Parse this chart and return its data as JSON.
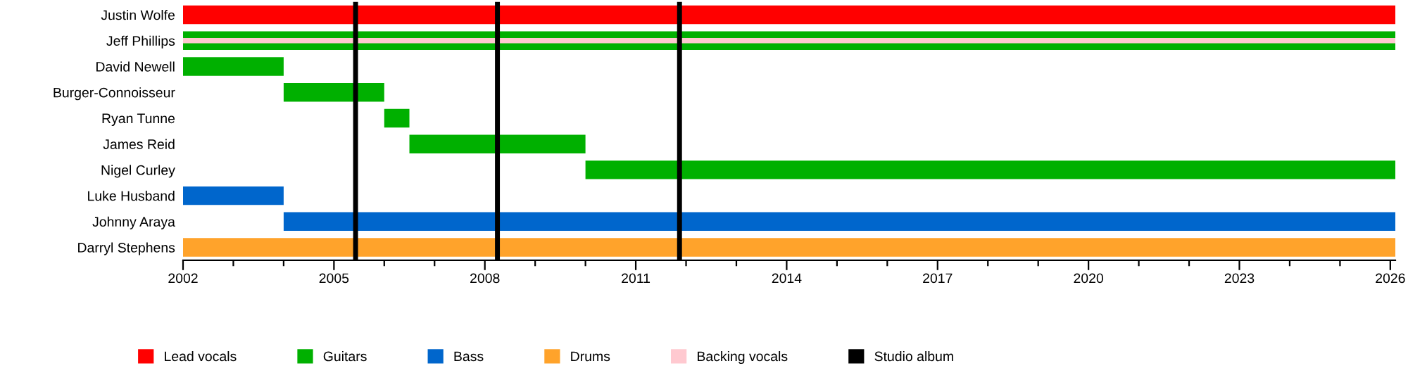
{
  "chart_data": {
    "type": "bar",
    "orientation": "horizontal",
    "categories": [
      "Justin Wolfe",
      "Jeff Phillips",
      "David Newell",
      "Burger-Connoisseur",
      "Ryan Tunne",
      "James Reid",
      "Nigel Curley",
      "Luke Husband",
      "Johnny Araya",
      "Darryl Stephens"
    ],
    "series": [
      {
        "name": "Lead vocals",
        "color": "#ff0000",
        "base": [
          2002,
          null,
          null,
          null,
          null,
          null,
          null,
          null,
          null,
          null
        ],
        "values": [
          24.1,
          null,
          null,
          null,
          null,
          null,
          null,
          null,
          null,
          null
        ]
      },
      {
        "name": "Guitars",
        "color": "#00b000",
        "base": [
          null,
          2002,
          2002,
          2004,
          2006,
          2006.5,
          2010,
          null,
          null,
          null
        ],
        "values": [
          null,
          24.1,
          2,
          2,
          0.5,
          3.5,
          16.1,
          null,
          null,
          null
        ]
      },
      {
        "name": "Bass",
        "color": "#0066cc",
        "base": [
          null,
          null,
          null,
          null,
          null,
          null,
          null,
          2002,
          2004,
          null
        ],
        "values": [
          null,
          null,
          null,
          null,
          null,
          null,
          null,
          2,
          22.1,
          null
        ]
      },
      {
        "name": "Drums",
        "color": "#ffa32b",
        "base": [
          null,
          null,
          null,
          null,
          null,
          null,
          null,
          null,
          null,
          2002
        ],
        "values": [
          null,
          null,
          null,
          null,
          null,
          null,
          null,
          null,
          null,
          24.1
        ]
      },
      {
        "name": "Backing vocals",
        "color": "#ffc9d0",
        "base": [
          null,
          2002,
          null,
          null,
          null,
          null,
          null,
          null,
          null,
          null
        ],
        "values": [
          null,
          24.1,
          null,
          null,
          null,
          null,
          null,
          null,
          null,
          null
        ]
      }
    ],
    "ref_lines": [
      {
        "axis": "x",
        "value": 2005.43,
        "label": "Studio album",
        "color": "#000000"
      },
      {
        "axis": "x",
        "value": 2008.25,
        "color": "#000000"
      },
      {
        "axis": "x",
        "value": 2011.87,
        "color": "#000000"
      }
    ],
    "xlim": [
      2002,
      2026.1
    ],
    "xticks": [
      2002,
      {
        "value": 2003,
        "label": null
      },
      {
        "value": 2004,
        "label": null
      },
      2005,
      {
        "value": 2006,
        "label": null
      },
      {
        "value": 2007,
        "label": null
      },
      2008,
      {
        "value": 2009,
        "label": null
      },
      {
        "value": 2010,
        "label": null
      },
      2011,
      {
        "value": 2012,
        "label": null
      },
      {
        "value": 2013,
        "label": null
      },
      2014,
      {
        "value": 2015,
        "label": null
      },
      {
        "value": 2016,
        "label": null
      },
      2017,
      {
        "value": 2018,
        "label": null
      },
      {
        "value": 2019,
        "label": null
      },
      2020,
      {
        "value": 2021,
        "label": null
      },
      {
        "value": 2022,
        "label": null
      },
      2023,
      {
        "value": 2024,
        "label": null
      },
      {
        "value": 2025,
        "label": null
      },
      2026
    ],
    "grid": false,
    "legend": "bottom"
  }
}
